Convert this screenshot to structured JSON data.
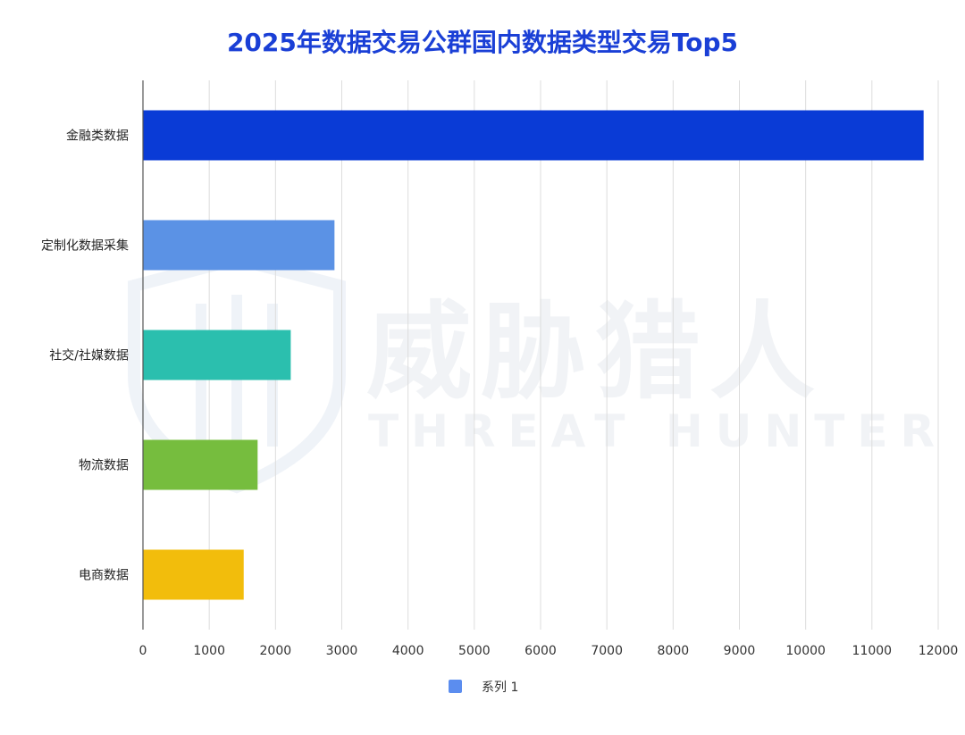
{
  "chart_data": {
    "type": "bar",
    "orientation": "horizontal",
    "title": "2025年数据交易公群国内数据类型交易Top5",
    "categories": [
      "金融类数据",
      "定制化数据采集",
      "社交/社媒数据",
      "物流数据",
      "电商数据"
    ],
    "series": [
      {
        "name": "系列 1",
        "values": [
          11780,
          2890,
          2230,
          1730,
          1520
        ]
      }
    ],
    "bar_colors": [
      "#0a3bd6",
      "#5b92e5",
      "#2bbfae",
      "#76bd3e",
      "#f2bd0c"
    ],
    "legend_color": "#5b8def",
    "xlim": [
      0,
      12000
    ],
    "xticks": [
      0,
      1000,
      2000,
      3000,
      4000,
      5000,
      6000,
      7000,
      8000,
      9000,
      10000,
      11000,
      12000
    ],
    "grid": true,
    "legend_position": "bottom",
    "title_color": "#1a3fd6"
  },
  "watermark": {
    "brand_cn": "威胁猎人",
    "brand_en": "THREAT HUNTER",
    "icon": "shield-logo-icon"
  }
}
